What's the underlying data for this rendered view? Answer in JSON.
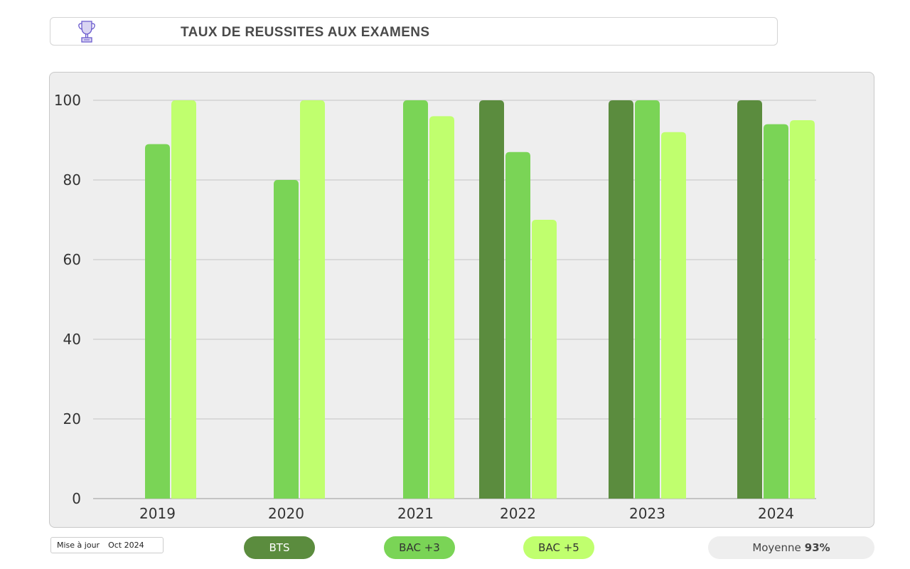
{
  "header": {
    "title": "TAUX DE REUSSITES AUX EXAMENS",
    "icon": "trophy-icon"
  },
  "chart_data": {
    "type": "bar",
    "categories": [
      "2019",
      "2020",
      "2021",
      "2022",
      "2023",
      "2024"
    ],
    "series": [
      {
        "name": "BTS",
        "color": "#5b8c3e",
        "values": [
          null,
          null,
          null,
          100,
          100,
          100
        ]
      },
      {
        "name": "BAC +3",
        "color": "#7ad456",
        "values": [
          89,
          80,
          100,
          87,
          100,
          94
        ]
      },
      {
        "name": "BAC +5",
        "color": "#c0ff6e",
        "values": [
          100,
          100,
          96,
          70,
          92,
          95
        ]
      }
    ],
    "ylim": [
      0,
      100
    ],
    "yticks": [
      "0",
      "20",
      "40",
      "60",
      "80",
      "100"
    ],
    "grid": true,
    "legend": "bottom",
    "title": "",
    "xlabel": "",
    "ylabel": ""
  },
  "footer": {
    "update_label": "Mise à jour",
    "update_value": "Oct 2024",
    "average_label": "Moyenne",
    "average_value": "93%"
  }
}
